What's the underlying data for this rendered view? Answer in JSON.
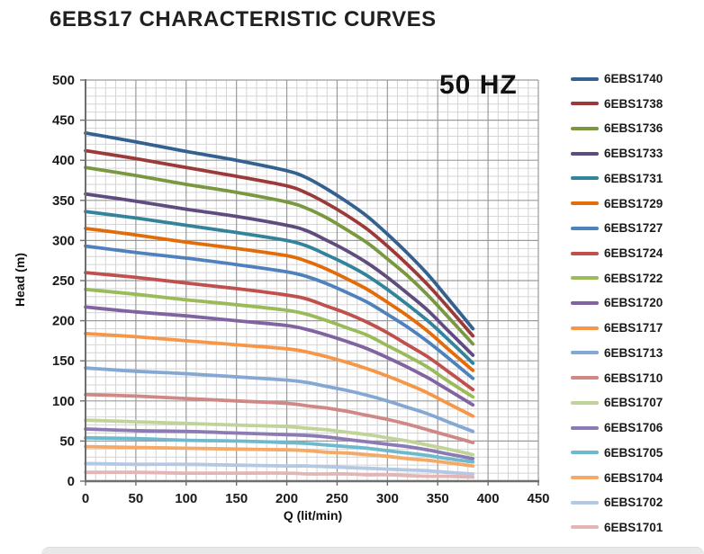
{
  "chart_data": {
    "type": "line",
    "title": "6EBS17 CHARACTERISTIC CURVES",
    "annotation": "50 HZ",
    "xlabel": "Q (lit/min)",
    "ylabel": "Head (m)",
    "xlim": [
      0,
      450
    ],
    "ylim": [
      0,
      500
    ],
    "x_ticks": [
      0,
      50,
      100,
      150,
      200,
      250,
      300,
      350,
      400,
      450
    ],
    "y_ticks": [
      0,
      50,
      100,
      150,
      200,
      250,
      300,
      350,
      400,
      450,
      500
    ],
    "x_minor_step": 10,
    "y_minor_step": 10,
    "grid": true,
    "legend_position": "right",
    "colors": {
      "grid_minor": "#d4d4d4",
      "grid_major": "#9b9b9b",
      "axis": "#6e6e6e",
      "text": "#1a1a1a"
    },
    "x": [
      0,
      50,
      100,
      150,
      200,
      220,
      240,
      260,
      280,
      300,
      320,
      340,
      360,
      385
    ],
    "series": [
      {
        "name": "6EBS1740",
        "color": "#34618F",
        "values": [
          434,
          423,
          411,
          400,
          387,
          378,
          364,
          348,
          330,
          308,
          284,
          258,
          228,
          190
        ]
      },
      {
        "name": "6EBS1738",
        "color": "#9B3A38",
        "values": [
          412,
          402,
          391,
          380,
          368,
          359,
          346,
          331,
          314,
          293,
          270,
          245,
          217,
          181
        ]
      },
      {
        "name": "6EBS1736",
        "color": "#7A9840",
        "values": [
          391,
          381,
          370,
          360,
          348,
          340,
          328,
          313,
          297,
          277,
          256,
          232,
          205,
          171
        ]
      },
      {
        "name": "6EBS1733",
        "color": "#5F4B7E",
        "values": [
          358,
          349,
          339,
          330,
          319,
          312,
          300,
          287,
          272,
          254,
          234,
          213,
          188,
          157
        ]
      },
      {
        "name": "6EBS1731",
        "color": "#31849B",
        "values": [
          336,
          328,
          319,
          310,
          300,
          293,
          282,
          270,
          256,
          239,
          220,
          200,
          177,
          147
        ]
      },
      {
        "name": "6EBS1729",
        "color": "#E36C0A",
        "values": [
          315,
          307,
          298,
          290,
          281,
          274,
          264,
          252,
          239,
          223,
          206,
          187,
          165,
          138
        ]
      },
      {
        "name": "6EBS1727",
        "color": "#4F81BD",
        "values": [
          293,
          285,
          278,
          270,
          261,
          255,
          246,
          235,
          223,
          208,
          192,
          174,
          154,
          128
        ]
      },
      {
        "name": "6EBS1724",
        "color": "#C0504D",
        "values": [
          260,
          254,
          247,
          240,
          232,
          227,
          218,
          209,
          198,
          185,
          170,
          155,
          137,
          114
        ]
      },
      {
        "name": "6EBS1722",
        "color": "#9BBB59",
        "values": [
          239,
          233,
          226,
          220,
          213,
          208,
          200,
          191,
          182,
          169,
          156,
          142,
          125,
          105
        ]
      },
      {
        "name": "6EBS1720",
        "color": "#8064A2",
        "values": [
          217,
          211,
          206,
          200,
          194,
          189,
          182,
          174,
          165,
          154,
          142,
          129,
          114,
          95
        ]
      },
      {
        "name": "6EBS1717",
        "color": "#F79646",
        "values": [
          184,
          180,
          175,
          170,
          165,
          161,
          155,
          148,
          140,
          131,
          121,
          110,
          97,
          81
        ]
      },
      {
        "name": "6EBS1713",
        "color": "#84A7D4",
        "values": [
          141,
          137,
          134,
          130,
          126,
          123,
          118,
          113,
          107,
          100,
          92,
          84,
          74,
          62
        ]
      },
      {
        "name": "6EBS1710",
        "color": "#D08886",
        "values": [
          108,
          106,
          103,
          100,
          97,
          94,
          91,
          87,
          82,
          77,
          71,
          64,
          57,
          48
        ]
      },
      {
        "name": "6EBS1707",
        "color": "#C0D49A",
        "values": [
          76,
          74,
          72,
          70,
          68,
          66,
          64,
          61,
          58,
          54,
          50,
          45,
          40,
          33
        ]
      },
      {
        "name": "6EBS1706",
        "color": "#8C7AB5",
        "values": [
          65,
          63,
          62,
          60,
          58,
          57,
          55,
          52,
          49,
          46,
          43,
          39,
          34,
          28
        ]
      },
      {
        "name": "6EBS1705",
        "color": "#6FB9CE",
        "values": [
          54,
          53,
          51,
          50,
          48,
          47,
          45,
          43,
          41,
          38,
          35,
          32,
          28,
          24
        ]
      },
      {
        "name": "6EBS1704",
        "color": "#F5A966",
        "values": [
          43,
          42,
          41,
          40,
          39,
          38,
          36,
          35,
          33,
          31,
          28,
          26,
          23,
          19
        ]
      },
      {
        "name": "6EBS1702",
        "color": "#B3C8E2",
        "values": [
          22,
          21,
          21,
          20,
          19,
          19,
          18,
          17,
          16,
          15,
          14,
          13,
          11,
          9
        ]
      },
      {
        "name": "6EBS1701",
        "color": "#E3B6B5",
        "values": [
          11,
          11,
          10,
          10,
          10,
          9,
          9,
          9,
          8,
          8,
          7,
          6,
          6,
          5
        ]
      }
    ]
  }
}
